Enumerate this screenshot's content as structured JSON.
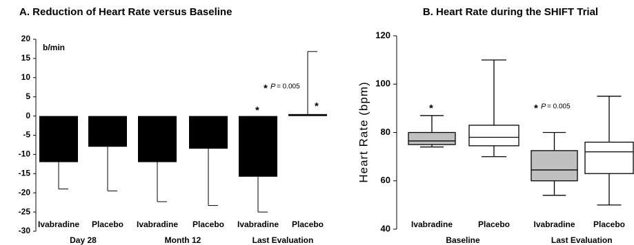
{
  "chart_data": [
    {
      "type": "bar",
      "title": "A. Reduction of Heart Rate versus Baseline",
      "unit_label": "b/min",
      "categories": [
        "Ivabradine",
        "Placebo",
        "Ivabradine",
        "Placebo",
        "Ivabradine",
        "Placebo"
      ],
      "groups": [
        "Day 28",
        "Month 12",
        "Last Evaluation"
      ],
      "values": [
        -12,
        -8,
        -12,
        -8.5,
        -15.8,
        0.5
      ],
      "errors": [
        7,
        11.5,
        10.3,
        14.8,
        9.2,
        16.3
      ],
      "color": "#000000",
      "ylim": [
        -30,
        20
      ],
      "yticks": [
        -30,
        -25,
        -20,
        -15,
        -10,
        -5,
        0,
        5,
        10,
        15,
        20
      ],
      "annotations": [
        {
          "star": "*"
        },
        {
          "star": "*"
        },
        {
          "star": "*",
          "p": "P",
          "value": "= 0.005"
        }
      ]
    },
    {
      "type": "box",
      "title": "B. Heart Rate during the SHIFT Trial",
      "ylabel": "Heart Rate (bpm)",
      "categories": [
        "Ivabradine",
        "Placebo",
        "Ivabradine",
        "Placebo"
      ],
      "groups": [
        "Baseline",
        "Last Evaluation"
      ],
      "boxes": [
        {
          "min": 74,
          "q1": 75,
          "median": 76.5,
          "q3": 80,
          "max": 87,
          "color": "#c0c0c0"
        },
        {
          "min": 70,
          "q1": 74.5,
          "median": 78,
          "q3": 83,
          "max": 110,
          "color": "#ffffff"
        },
        {
          "min": 54,
          "q1": 60,
          "median": 64.5,
          "q3": 72.5,
          "max": 80,
          "color": "#c0c0c0"
        },
        {
          "min": 50,
          "q1": 63,
          "median": 72,
          "q3": 76,
          "max": 95,
          "color": "#ffffff"
        }
      ],
      "ylim": [
        40,
        120
      ],
      "yticks": [
        40,
        60,
        80,
        100,
        120
      ],
      "annotations": [
        {
          "star": "*"
        },
        {
          "star": "*",
          "p": "P",
          "value": "= 0.005"
        }
      ]
    }
  ]
}
